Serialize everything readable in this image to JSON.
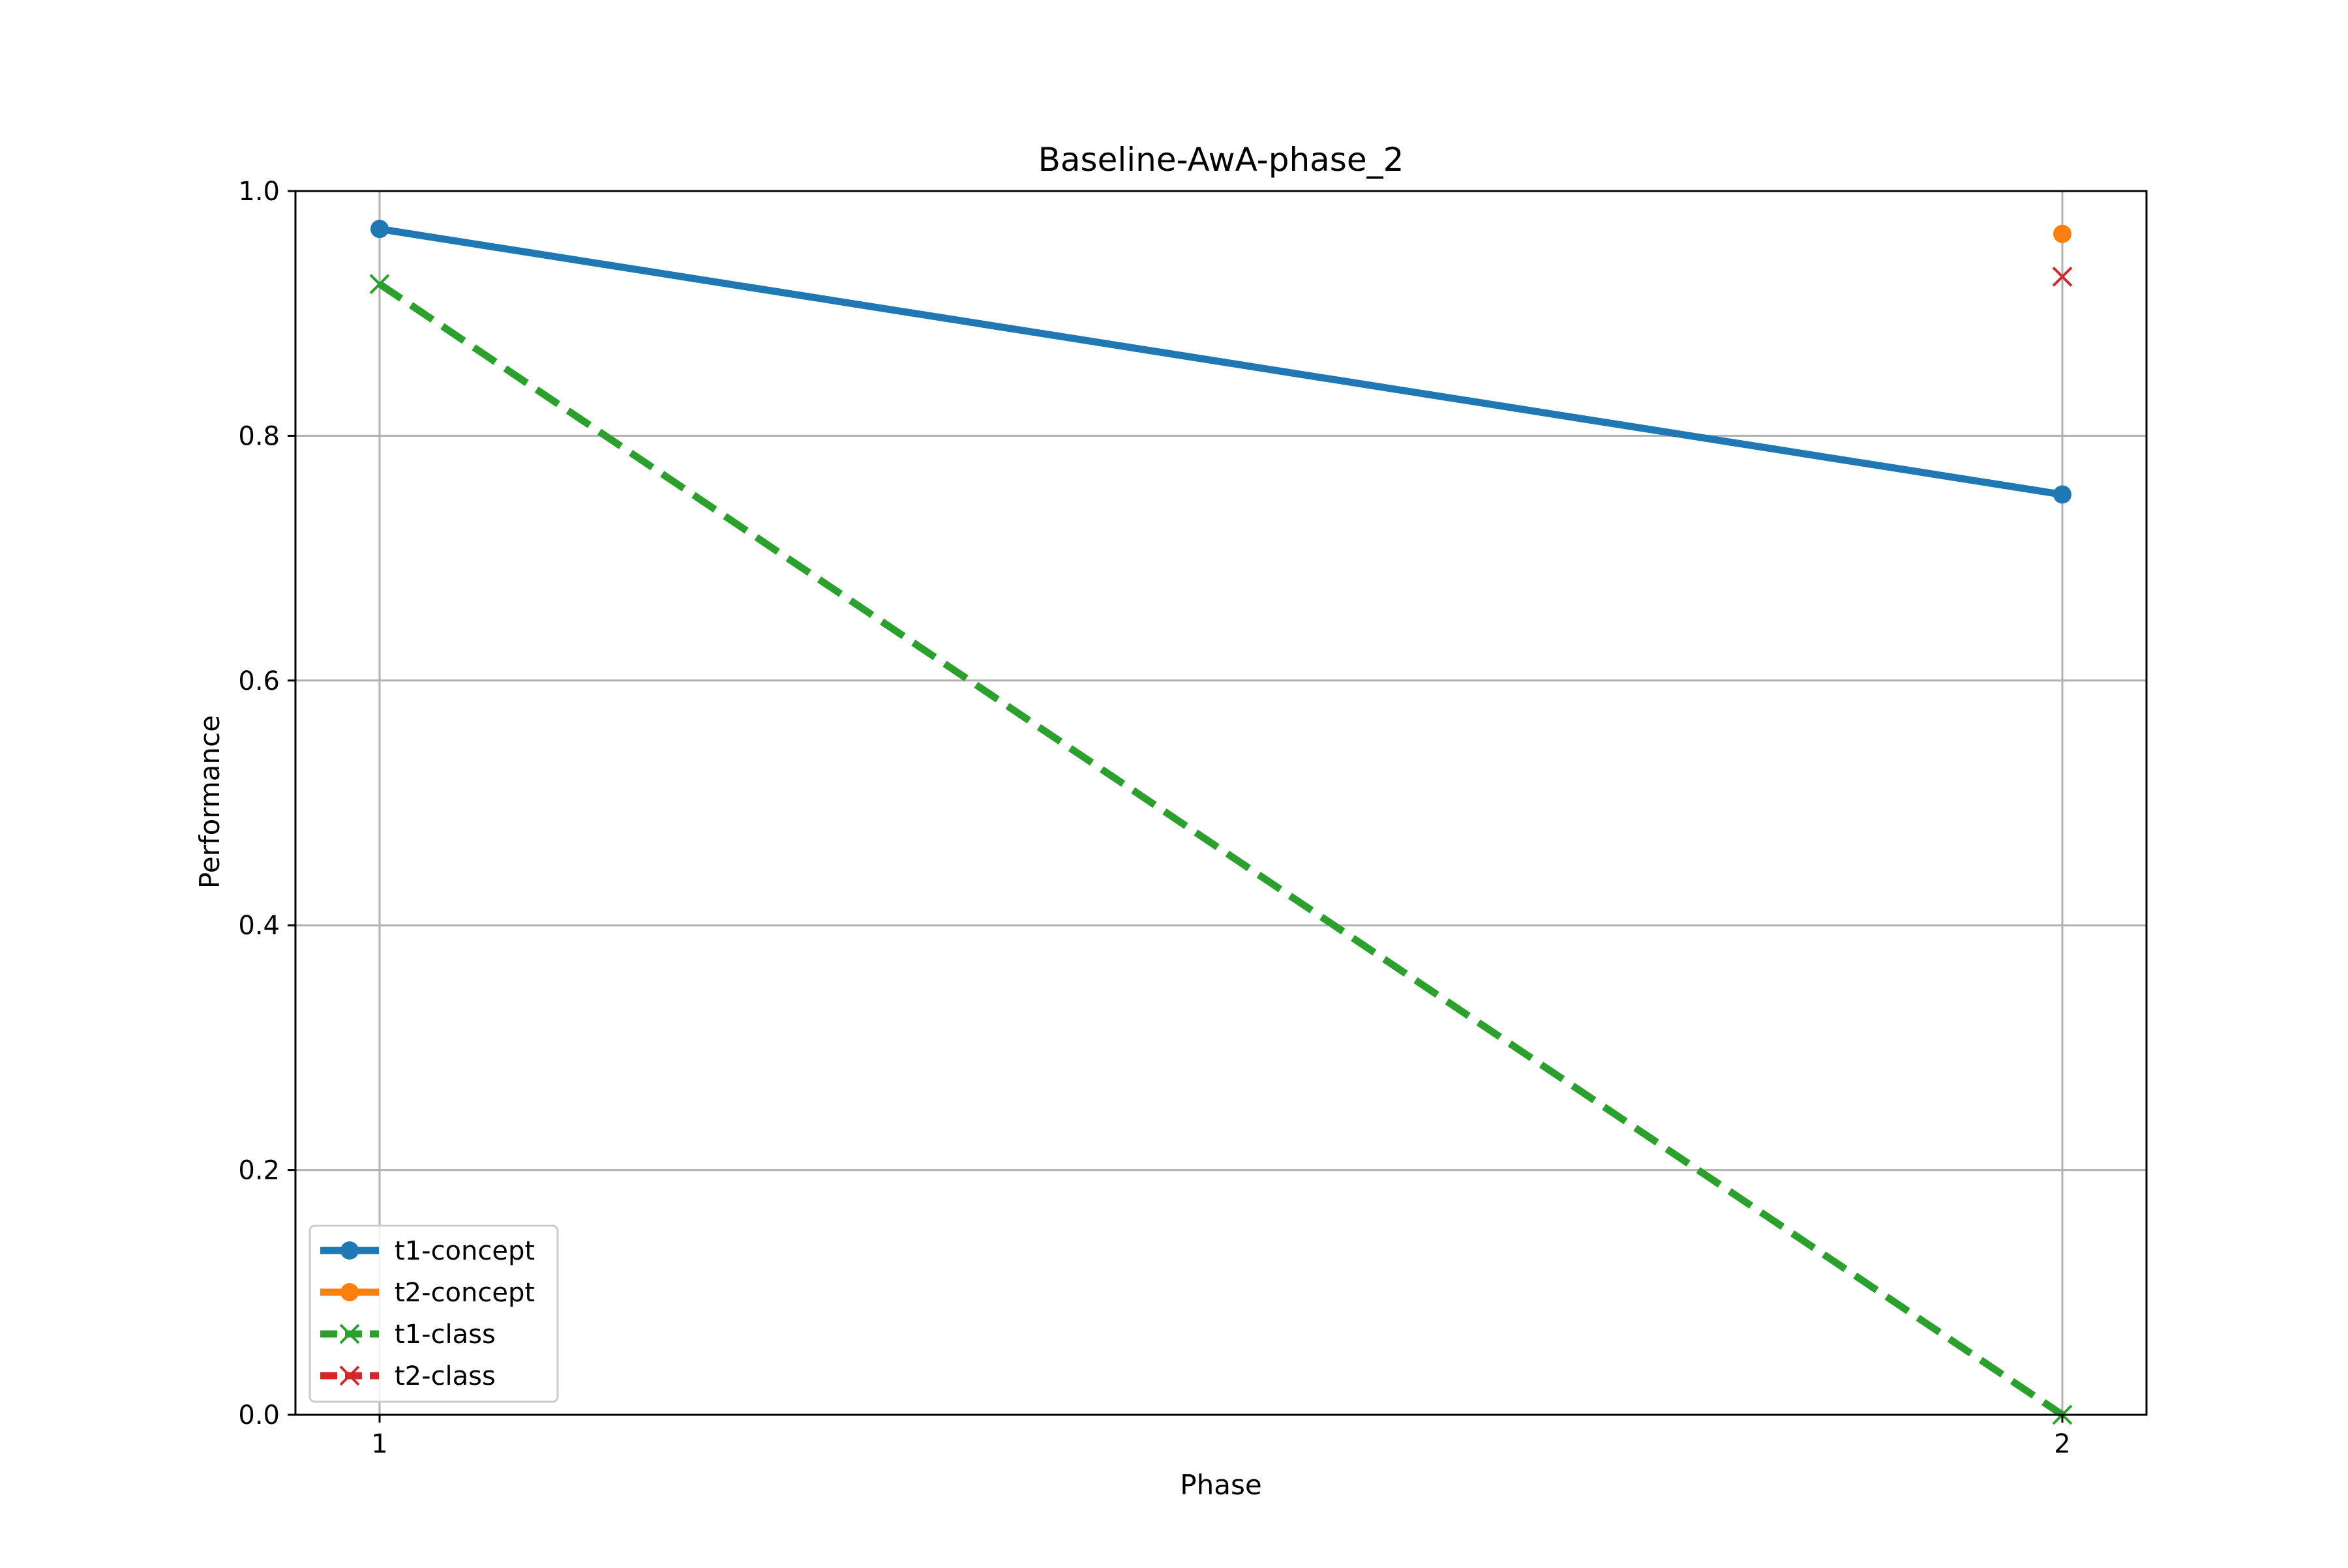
{
  "chart_data": {
    "type": "line",
    "title": "Baseline-AwA-phase_2",
    "xlabel": "Phase",
    "ylabel": "Performance",
    "x": [
      1,
      2
    ],
    "xticks": [
      "1",
      "2"
    ],
    "xlim": [
      0.95,
      2.05
    ],
    "ylim": [
      0.0,
      1.0
    ],
    "yticks": [
      "0.0",
      "0.2",
      "0.4",
      "0.6",
      "0.8",
      "1.0"
    ],
    "grid": true,
    "legend_position": "lower-left",
    "series": [
      {
        "name": "t1-concept",
        "values": [
          0.969,
          0.752
        ],
        "color": "#1f77b4",
        "marker": "circle",
        "linestyle": "solid"
      },
      {
        "name": "t2-concept",
        "values": [
          null,
          0.965
        ],
        "color": "#ff7f0e",
        "marker": "circle",
        "linestyle": "solid"
      },
      {
        "name": "t1-class",
        "values": [
          0.924,
          0.0
        ],
        "color": "#2ca02c",
        "marker": "x",
        "linestyle": "dashed"
      },
      {
        "name": "t2-class",
        "values": [
          null,
          0.93
        ],
        "color": "#d62728",
        "marker": "x",
        "linestyle": "dashed"
      }
    ]
  }
}
